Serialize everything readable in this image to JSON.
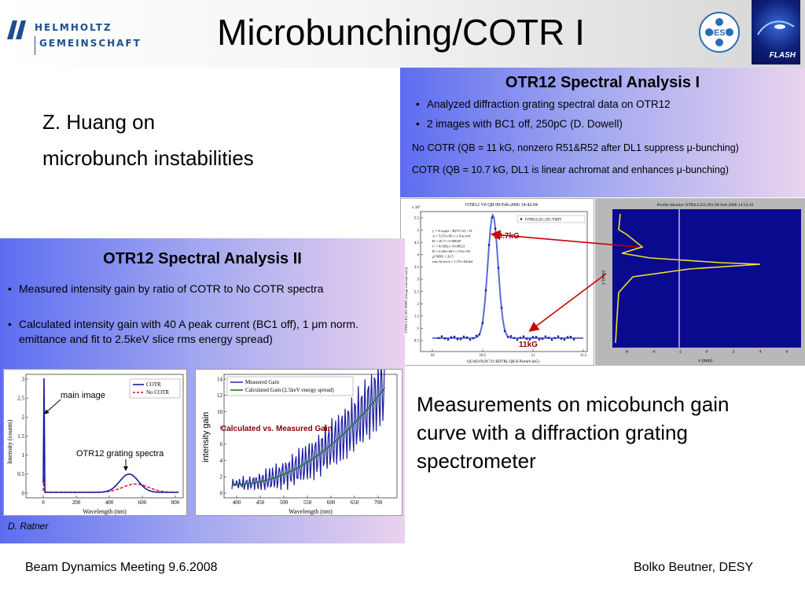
{
  "slide": {
    "title": "Microbunching/COTR I",
    "intro_line1": "Z. Huang on",
    "intro_line2": "microbunch instabilities",
    "caption": "Measurements on micobunch gain curve with a diffraction grating spectrometer"
  },
  "logos": {
    "helmholtz_line1": "HELMHOLTZ",
    "helmholtz_line2": "GEMEINSCHAFT",
    "desy": "DESY",
    "flash": "FLASH"
  },
  "panel1": {
    "title": "OTR12 Spectral Analysis I",
    "bullets": [
      "Analyzed diffraction grating spectral data on OTR12",
      "2 images with BC1 off, 250pC (D. Dowell)"
    ],
    "line1": "No COTR (QB = 11 kG, nonzero R51&R52 after DL1 suppress  μ-bunching)",
    "line2": "COTR (QB = 10.7 kG, DL1 is linear achromat and enhances μ-bunching)",
    "chart": {
      "header": "OTR12 V0 QB 09-Feb-2006 14:42:04",
      "legend": "OTRS:LI21:291:TMIT",
      "fit_lines": [
        "y = A exp(x - B)²/C²/2) + D",
        "A = 5.67e+05+/-1.93e+04",
        "B = 10.7+/-0.00029",
        "C = 0.0362+/-0.00023",
        "D = 6.26e+04+/-1.91e+03",
        "χ²/NDF = 20.5",
        "rms fit error = 1.37e+04/kel"
      ],
      "xlabel": "QUAD:IN20:731:BDTRL QB B Perturb (kG)",
      "ylabel": "OTRS:LI21:291 TMIT (charge estimate (nel))",
      "label_high": "10.7kG",
      "label_low": "11kG",
      "x_ticks": [
        "10",
        "10.5",
        "11",
        "11.5"
      ],
      "y_ticks": [
        "0.5",
        "1",
        "1.5",
        "2",
        "2.5",
        "3",
        "3.5",
        "4",
        "4.5",
        "5",
        "5.5"
      ],
      "y_exponent": "x 10⁵"
    },
    "monitor": {
      "header": "Profile Monitor OTRS:LI21:291 09-Feb-2006 14:54:19",
      "xlabel": "x (mm)",
      "ylabel": "y (mm)",
      "x_ticks": [
        "-6",
        "-4",
        "-2",
        "0",
        "2",
        "4",
        "6"
      ]
    }
  },
  "panel2": {
    "title": "OTR12 Spectral Analysis II",
    "bullets": [
      "Measured intensity gain by ratio of COTR to No COTR spectra",
      "Calculated intensity gain with 40 A peak current (BC1 off), 1 μm norm. emittance and fit to 2.5keV slice rms energy spread)"
    ],
    "credit": "D. Ratner",
    "chart_left": {
      "ylabel": "Intensity (counts)",
      "xlabel": "Wavelength (nm)",
      "legend": [
        "COTR",
        "No COTR"
      ],
      "annotation_main": "main image",
      "annotation_grating": "OTR12 grating spectra",
      "x_ticks": [
        "0",
        "200",
        "400",
        "600",
        "800"
      ],
      "y_ticks": [
        "0",
        "0.5",
        "1",
        "1.5",
        "2",
        "2.5",
        "3"
      ]
    },
    "chart_right": {
      "ylabel": "intensity gain",
      "xlabel": "Wavelength (nm)",
      "legend": [
        "Measured Gain",
        "Calculated Gain (2.5keV energy spread)"
      ],
      "annotation": "Calculated vs. Measured Gain",
      "x_ticks": [
        "400",
        "450",
        "500",
        "550",
        "600",
        "650",
        "700"
      ],
      "y_ticks": [
        "0",
        "2",
        "4",
        "6",
        "8",
        "10",
        "12",
        "14"
      ]
    }
  },
  "footer": {
    "left": "Beam Dynamics Meeting 9.6.2008",
    "right": "Bolko Beutner, DESY"
  },
  "colors": {
    "cotr": "#1a1aa0",
    "no_cotr": "#d01010",
    "calc_gain": "#1f7a2a",
    "arrow": "#cc0000",
    "annotation": "#8b0000"
  }
}
